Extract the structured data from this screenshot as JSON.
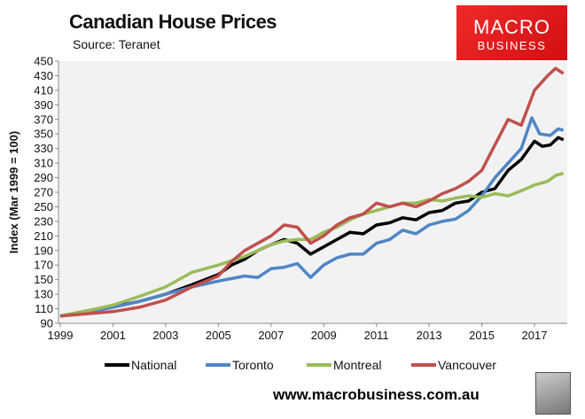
{
  "header": {
    "title": "Canadian House Prices",
    "source": "Source: Teranet"
  },
  "logo": {
    "line1": "MACRO",
    "line2": "BUSINESS"
  },
  "footer": {
    "url": "www.macrobusiness.com.au"
  },
  "chart_data": {
    "type": "line",
    "title": "Canadian House Prices",
    "ylabel": "Index (Mar 1999 = 100)",
    "xlabel": "",
    "ylim": [
      90,
      450
    ],
    "xlim": [
      1999,
      2018.2
    ],
    "yticks": [
      90,
      110,
      130,
      150,
      170,
      190,
      210,
      230,
      250,
      270,
      290,
      310,
      330,
      350,
      370,
      390,
      410,
      430,
      450
    ],
    "xticks": [
      1999,
      2001,
      2003,
      2005,
      2007,
      2009,
      2011,
      2013,
      2015,
      2017
    ],
    "legend_position": "bottom",
    "grid": false,
    "series": [
      {
        "name": "National",
        "color": "#000000",
        "points": [
          [
            1999,
            100
          ],
          [
            2000,
            107
          ],
          [
            2001,
            113
          ],
          [
            2002,
            120
          ],
          [
            2003,
            130
          ],
          [
            2004,
            143
          ],
          [
            2005,
            157
          ],
          [
            2005.5,
            170
          ],
          [
            2006,
            178
          ],
          [
            2006.5,
            190
          ],
          [
            2007,
            198
          ],
          [
            2007.5,
            205
          ],
          [
            2008,
            200
          ],
          [
            2008.5,
            185
          ],
          [
            2009,
            195
          ],
          [
            2009.5,
            205
          ],
          [
            2010,
            215
          ],
          [
            2010.5,
            213
          ],
          [
            2011,
            225
          ],
          [
            2011.5,
            228
          ],
          [
            2012,
            235
          ],
          [
            2012.5,
            232
          ],
          [
            2013,
            242
          ],
          [
            2013.5,
            245
          ],
          [
            2014,
            255
          ],
          [
            2014.5,
            258
          ],
          [
            2015,
            270
          ],
          [
            2015.5,
            275
          ],
          [
            2016,
            300
          ],
          [
            2016.5,
            315
          ],
          [
            2017,
            340
          ],
          [
            2017.3,
            333
          ],
          [
            2017.6,
            335
          ],
          [
            2017.9,
            345
          ],
          [
            2018.1,
            342
          ]
        ]
      },
      {
        "name": "Toronto",
        "color": "#4f86c6",
        "points": [
          [
            1999,
            100
          ],
          [
            2000,
            105
          ],
          [
            2001,
            112
          ],
          [
            2002,
            120
          ],
          [
            2003,
            130
          ],
          [
            2004,
            140
          ],
          [
            2005,
            148
          ],
          [
            2006,
            155
          ],
          [
            2006.5,
            153
          ],
          [
            2007,
            165
          ],
          [
            2007.5,
            167
          ],
          [
            2008,
            172
          ],
          [
            2008.5,
            153
          ],
          [
            2009,
            170
          ],
          [
            2009.5,
            180
          ],
          [
            2010,
            185
          ],
          [
            2010.5,
            185
          ],
          [
            2011,
            200
          ],
          [
            2011.5,
            205
          ],
          [
            2012,
            218
          ],
          [
            2012.5,
            213
          ],
          [
            2013,
            225
          ],
          [
            2013.5,
            230
          ],
          [
            2014,
            233
          ],
          [
            2014.5,
            245
          ],
          [
            2015,
            265
          ],
          [
            2015.5,
            290
          ],
          [
            2016,
            310
          ],
          [
            2016.5,
            330
          ],
          [
            2016.9,
            372
          ],
          [
            2017.2,
            350
          ],
          [
            2017.6,
            348
          ],
          [
            2017.9,
            357
          ],
          [
            2018.1,
            355
          ]
        ]
      },
      {
        "name": "Montreal",
        "color": "#9bbb59",
        "points": [
          [
            1999,
            100
          ],
          [
            2000,
            107
          ],
          [
            2001,
            115
          ],
          [
            2002,
            127
          ],
          [
            2003,
            140
          ],
          [
            2004,
            160
          ],
          [
            2005,
            170
          ],
          [
            2006,
            182
          ],
          [
            2007,
            198
          ],
          [
            2007.5,
            203
          ],
          [
            2008,
            205
          ],
          [
            2008.5,
            205
          ],
          [
            2009,
            215
          ],
          [
            2009.5,
            222
          ],
          [
            2010,
            232
          ],
          [
            2010.5,
            240
          ],
          [
            2011,
            245
          ],
          [
            2011.5,
            250
          ],
          [
            2012,
            255
          ],
          [
            2012.5,
            255
          ],
          [
            2013,
            260
          ],
          [
            2013.5,
            258
          ],
          [
            2014,
            262
          ],
          [
            2014.5,
            265
          ],
          [
            2015,
            263
          ],
          [
            2015.5,
            268
          ],
          [
            2016,
            265
          ],
          [
            2016.5,
            272
          ],
          [
            2017,
            280
          ],
          [
            2017.5,
            285
          ],
          [
            2017.8,
            293
          ],
          [
            2018.1,
            296
          ]
        ]
      },
      {
        "name": "Vancouver",
        "color": "#c0504d",
        "points": [
          [
            1999,
            100
          ],
          [
            2000,
            103
          ],
          [
            2001,
            106
          ],
          [
            2002,
            112
          ],
          [
            2003,
            122
          ],
          [
            2004,
            140
          ],
          [
            2005,
            155
          ],
          [
            2005.5,
            175
          ],
          [
            2006,
            190
          ],
          [
            2007,
            210
          ],
          [
            2007.5,
            225
          ],
          [
            2008,
            222
          ],
          [
            2008.5,
            200
          ],
          [
            2009,
            210
          ],
          [
            2009.5,
            225
          ],
          [
            2010,
            235
          ],
          [
            2010.5,
            240
          ],
          [
            2011,
            255
          ],
          [
            2011.5,
            250
          ],
          [
            2012,
            255
          ],
          [
            2012.5,
            250
          ],
          [
            2013,
            258
          ],
          [
            2013.5,
            268
          ],
          [
            2014,
            275
          ],
          [
            2014.5,
            285
          ],
          [
            2015,
            300
          ],
          [
            2015.5,
            335
          ],
          [
            2016,
            370
          ],
          [
            2016.5,
            362
          ],
          [
            2017,
            410
          ],
          [
            2017.5,
            430
          ],
          [
            2017.8,
            440
          ],
          [
            2018.1,
            433
          ]
        ]
      }
    ]
  }
}
